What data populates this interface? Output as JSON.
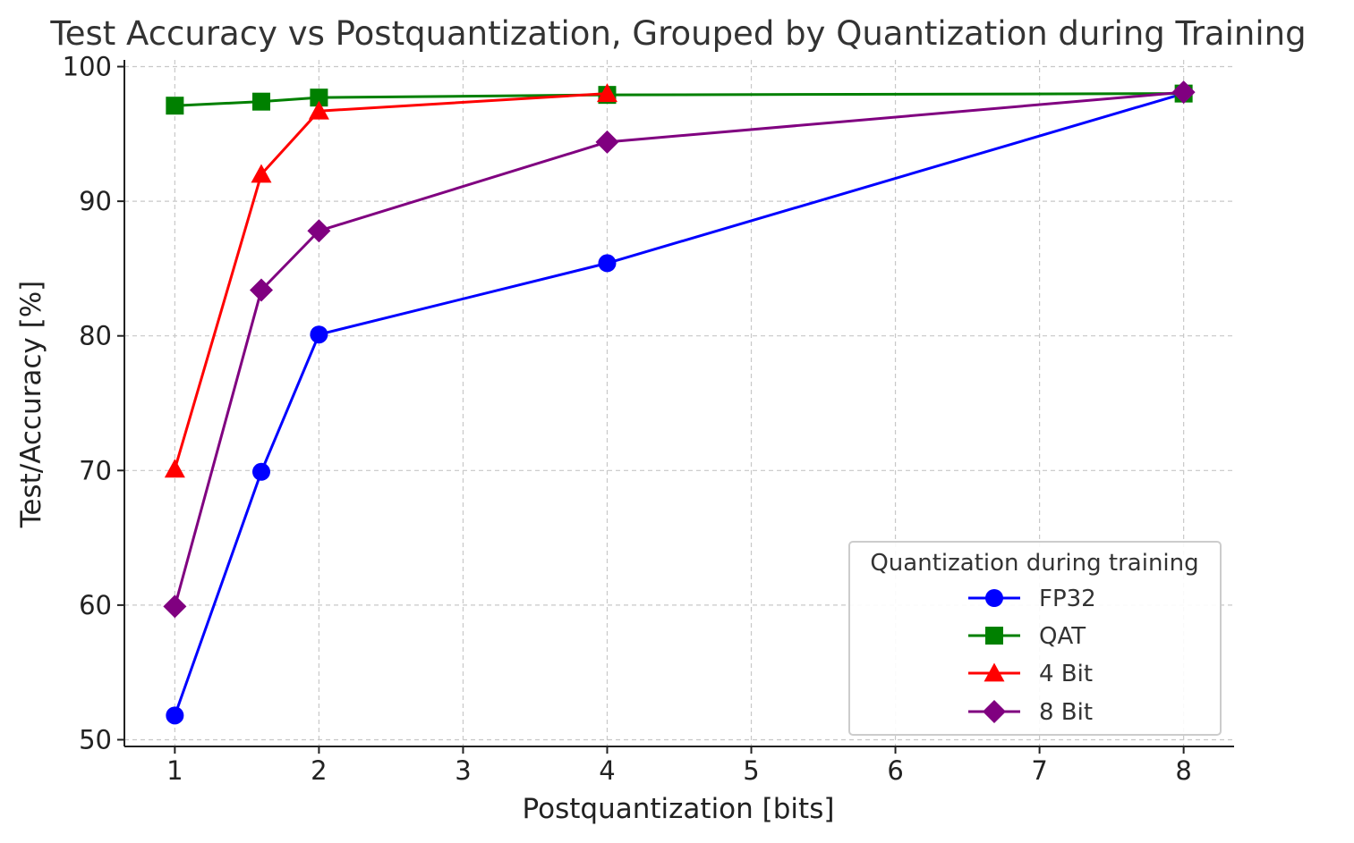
{
  "chart_data": {
    "type": "line",
    "title": "Test Accuracy vs Postquantization, Grouped by Quantization during Training",
    "xlabel": "Postquantization [bits]",
    "ylabel": "Test/Accuracy [%]",
    "xlim": [
      0.65,
      8.35
    ],
    "ylim": [
      49.5,
      100.5
    ],
    "xticks": [
      1,
      2,
      3,
      4,
      5,
      6,
      7,
      8
    ],
    "xtick_labels": [
      "1",
      "2",
      "3",
      "4",
      "5",
      "6",
      "7",
      "8"
    ],
    "yticks": [
      50,
      60,
      70,
      80,
      90,
      100
    ],
    "ytick_labels": [
      "50",
      "60",
      "70",
      "80",
      "90",
      "100"
    ],
    "grid": true,
    "legend": {
      "title": "Quantization during training",
      "placement": "lower-right"
    },
    "series": [
      {
        "name": "FP32",
        "color": "#0000ff",
        "marker": "circle",
        "x": [
          1,
          1.6,
          2,
          4,
          8
        ],
        "y": [
          51.8,
          69.9,
          80.1,
          85.4,
          98.0
        ]
      },
      {
        "name": "QAT",
        "color": "#008000",
        "marker": "square",
        "x": [
          1,
          1.6,
          2,
          4,
          8
        ],
        "y": [
          97.1,
          97.4,
          97.7,
          97.9,
          98.0
        ]
      },
      {
        "name": "4 Bit",
        "color": "#ff0000",
        "marker": "triangle",
        "x": [
          1,
          1.6,
          2,
          4
        ],
        "y": [
          70.1,
          92.0,
          96.7,
          98.0
        ]
      },
      {
        "name": "8 Bit",
        "color": "#800080",
        "marker": "diamond",
        "x": [
          1,
          1.6,
          2,
          4,
          8
        ],
        "y": [
          59.9,
          83.4,
          87.8,
          94.4,
          98.1
        ]
      }
    ]
  }
}
